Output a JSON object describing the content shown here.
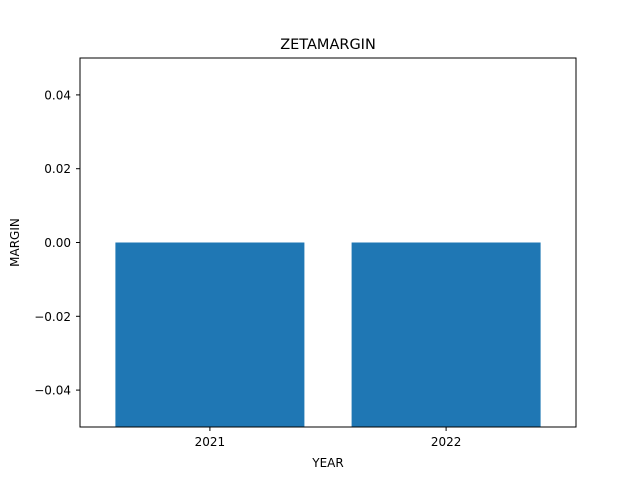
{
  "chart_data": {
    "type": "bar",
    "title": "ZETAMARGIN",
    "xlabel": "YEAR",
    "ylabel": "MARGIN",
    "categories": [
      "2021",
      "2022"
    ],
    "values": [
      -0.05,
      -0.05
    ],
    "ylim": [
      -0.05,
      0.05
    ],
    "yticks": [
      -0.04,
      -0.02,
      0.0,
      0.02,
      0.04
    ],
    "ytick_labels": [
      "−0.04",
      "−0.02",
      "0.00",
      "0.02",
      "0.04"
    ],
    "grid": false,
    "bar_color": "#1f77b4"
  }
}
